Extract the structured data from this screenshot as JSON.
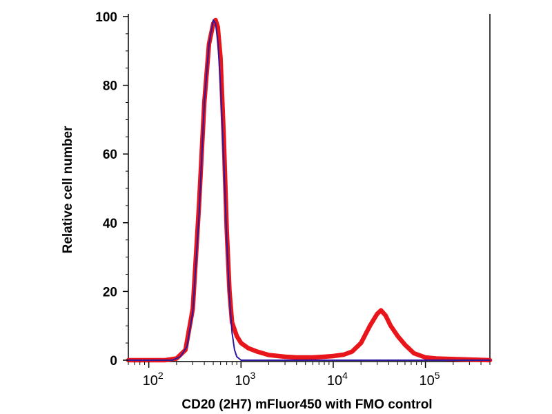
{
  "chart_data": {
    "type": "line",
    "title": "",
    "xlabel": "CD20 (2H7) mFluor450 with FMO control",
    "ylabel": "Relative cell number",
    "xscale": "log",
    "xlim": [
      60,
      500000
    ],
    "ylim": [
      0,
      100
    ],
    "grid": false,
    "legend": "none",
    "x_ticks": [
      {
        "value": 100,
        "base": "10",
        "exp": "2"
      },
      {
        "value": 1000,
        "base": "10",
        "exp": "3"
      },
      {
        "value": 10000,
        "base": "10",
        "exp": "4"
      },
      {
        "value": 100000,
        "base": "10",
        "exp": "5"
      }
    ],
    "y_ticks": [
      {
        "value": 0,
        "label": "0"
      },
      {
        "value": 20,
        "label": "20"
      },
      {
        "value": 40,
        "label": "40"
      },
      {
        "value": 60,
        "label": "60"
      },
      {
        "value": 80,
        "label": "80"
      },
      {
        "value": 100,
        "label": "100"
      }
    ],
    "series": [
      {
        "color": "#e8161b",
        "x": [
          60,
          150,
          200,
          250,
          300,
          350,
          400,
          450,
          500,
          530,
          560,
          600,
          650,
          700,
          750,
          800,
          900,
          1000,
          1200,
          1500,
          2000,
          3000,
          4000,
          6000,
          8000,
          10000,
          13000,
          16000,
          20000,
          25000,
          30000,
          33000,
          37000,
          42000,
          50000,
          60000,
          75000,
          100000,
          130000,
          500000
        ],
        "y": [
          0,
          0,
          0.5,
          3,
          15,
          45,
          75,
          92,
          98,
          99,
          97,
          88,
          65,
          38,
          20,
          11,
          7,
          5,
          3.5,
          2.5,
          1.5,
          1,
          0.8,
          0.8,
          1,
          1.2,
          1.6,
          2.5,
          5,
          10,
          13.5,
          14.5,
          13,
          10,
          7,
          4.5,
          2,
          0.8,
          0.5,
          0
        ]
      },
      {
        "color": "#2b1a9e",
        "x": [
          60,
          180,
          220,
          260,
          300,
          350,
          400,
          450,
          500,
          530,
          560,
          600,
          650,
          700,
          750,
          800,
          850,
          900,
          1000,
          2000,
          500000
        ],
        "y": [
          0,
          0,
          1,
          4,
          14,
          42,
          75,
          92,
          99,
          98,
          93,
          80,
          58,
          35,
          18,
          8,
          3,
          1,
          0,
          0,
          0
        ]
      }
    ]
  }
}
